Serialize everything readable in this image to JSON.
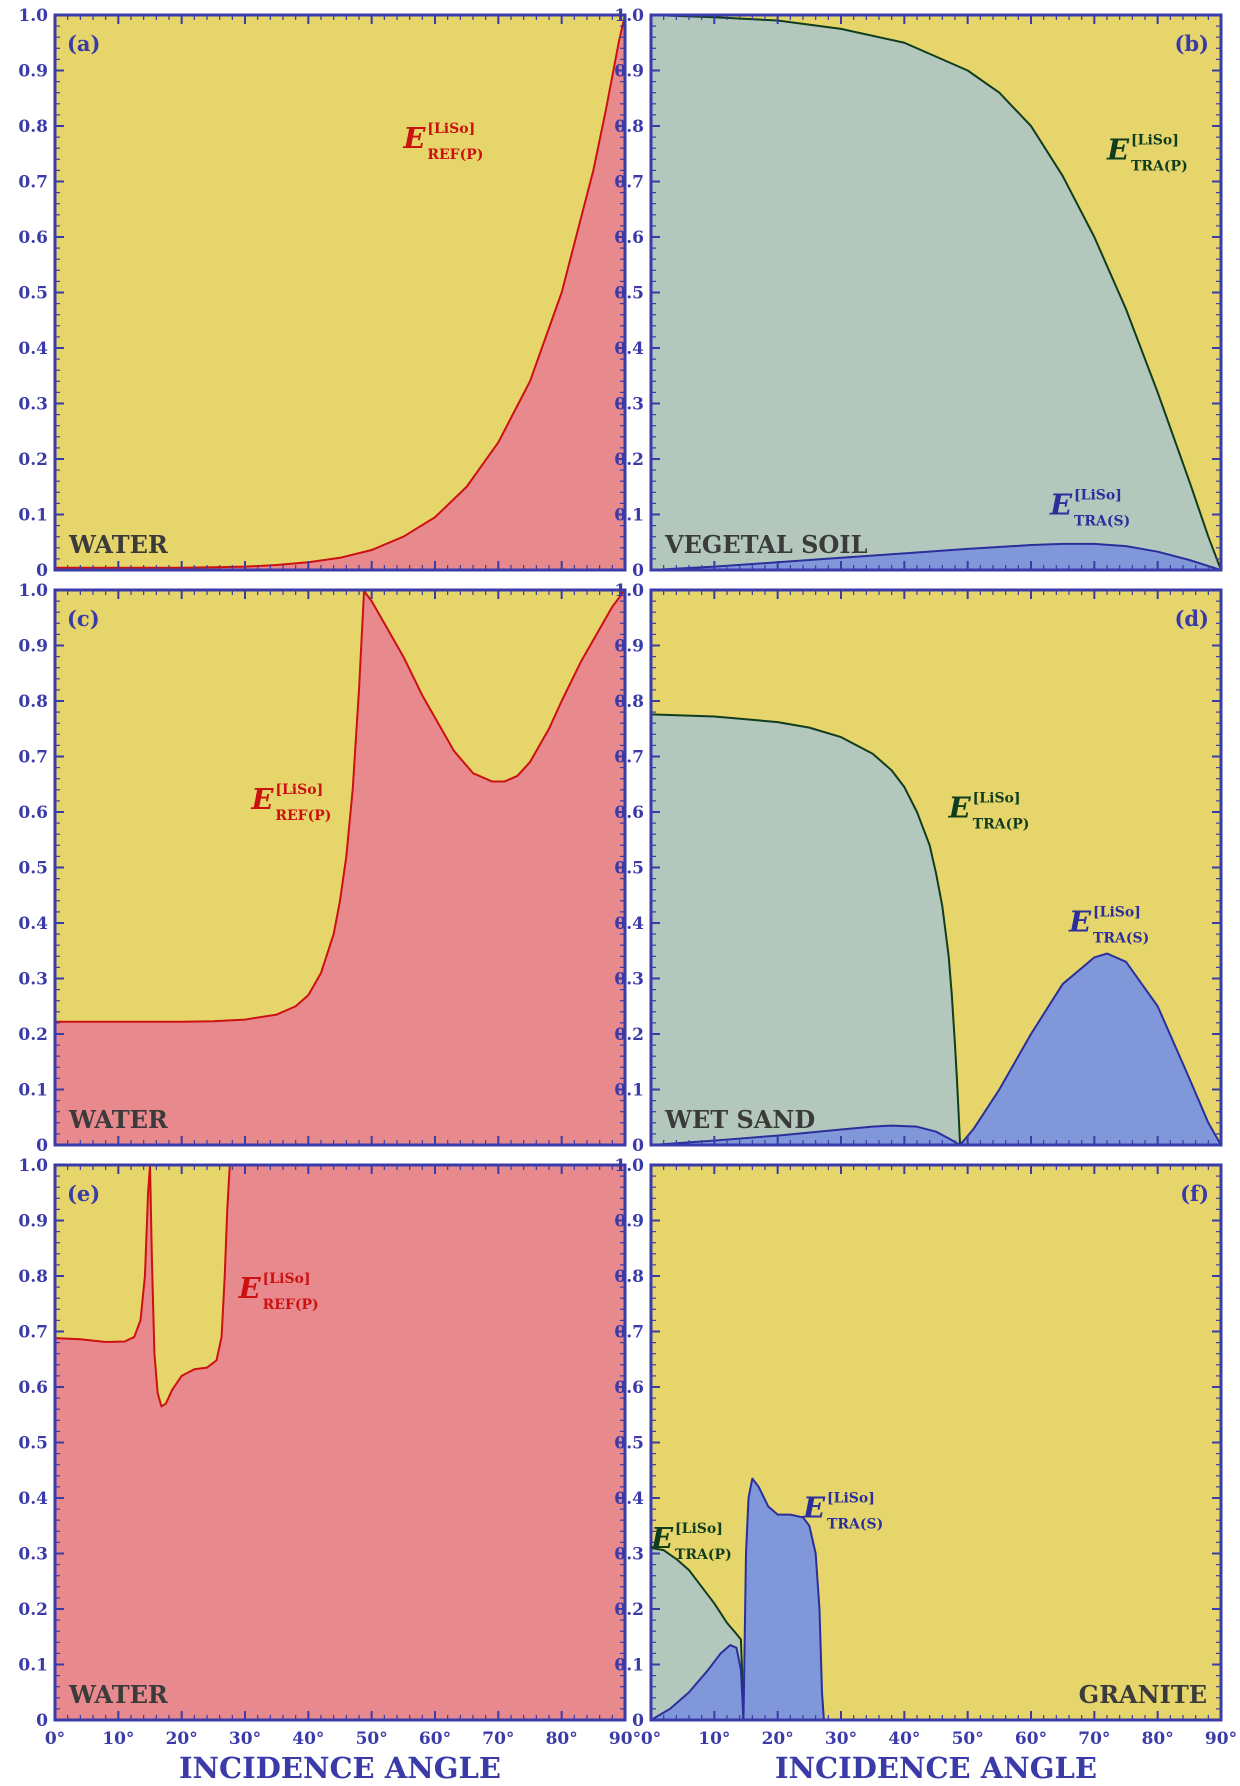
{
  "colors": {
    "background": "#e6d56a",
    "reflection_fill": "#e8898e",
    "reflection_line": "#cc1111",
    "tra_p_fill": "#b3c7bd",
    "tra_p_line": "#0f3d1d",
    "tra_s_fill": "#8098d9",
    "tra_s_line": "#2b2f9c",
    "axis": "#3a3aa8",
    "material_text": "#3b3b3b"
  },
  "x_axis": {
    "label": "INCIDENCE ANGLE",
    "ticks": [
      "0°",
      "10°",
      "20°",
      "30°",
      "40°",
      "50°",
      "60°",
      "70°",
      "80°",
      "90°"
    ],
    "tick_values": [
      0,
      10,
      20,
      30,
      40,
      50,
      60,
      70,
      80,
      90
    ]
  },
  "y_axis": {
    "ticks": [
      "0",
      "0.1",
      "0.2",
      "0.3",
      "0.4",
      "0.5",
      "0.6",
      "0.7",
      "0.8",
      "0.9",
      "1.0"
    ],
    "tick_values": [
      0,
      0.1,
      0.2,
      0.3,
      0.4,
      0.5,
      0.6,
      0.7,
      0.8,
      0.9,
      1.0
    ]
  },
  "chart_data": [
    {
      "type": "area",
      "panel": "(a)",
      "material": "WATER",
      "xlim": [
        0,
        90
      ],
      "ylim": [
        0,
        1
      ],
      "series": [
        {
          "name": "E REF(P) [LiSo]",
          "label_main": "E",
          "label_sup": "[LiSo]",
          "label_sub": "REF(P)",
          "kind": "ref",
          "x": [
            0,
            5,
            10,
            15,
            20,
            25,
            30,
            35,
            40,
            45,
            50,
            55,
            60,
            65,
            70,
            75,
            80,
            85,
            87,
            89,
            90
          ],
          "y": [
            0.004,
            0.004,
            0.004,
            0.004,
            0.004,
            0.005,
            0.006,
            0.009,
            0.014,
            0.022,
            0.036,
            0.06,
            0.095,
            0.15,
            0.23,
            0.34,
            0.5,
            0.72,
            0.83,
            0.95,
            1.0
          ]
        }
      ]
    },
    {
      "type": "area",
      "panel": "(b)",
      "material": "VEGETAL SOIL",
      "xlim": [
        0,
        90
      ],
      "ylim": [
        0,
        1
      ],
      "series": [
        {
          "name": "E TRA(P) [LiSo]",
          "label_main": "E",
          "label_sup": "[LiSo]",
          "label_sub": "TRA(P)",
          "kind": "trap",
          "x": [
            0,
            10,
            20,
            30,
            40,
            50,
            55,
            60,
            65,
            70,
            75,
            80,
            85,
            88,
            90
          ],
          "y": [
            1.0,
            0.996,
            0.99,
            0.975,
            0.95,
            0.9,
            0.86,
            0.8,
            0.71,
            0.6,
            0.47,
            0.32,
            0.16,
            0.06,
            0.0
          ]
        },
        {
          "name": "E TRA(S) [LiSo]",
          "label_main": "E",
          "label_sub": "TRA(S)",
          "label_sup": "[LiSo]",
          "kind": "tras",
          "x": [
            0,
            10,
            20,
            30,
            40,
            50,
            60,
            65,
            70,
            75,
            80,
            85,
            90
          ],
          "y": [
            0.0,
            0.006,
            0.014,
            0.022,
            0.03,
            0.038,
            0.045,
            0.047,
            0.047,
            0.043,
            0.033,
            0.018,
            0.0
          ]
        }
      ]
    },
    {
      "type": "area",
      "panel": "(c)",
      "material": "WATER",
      "xlim": [
        0,
        90
      ],
      "ylim": [
        0,
        1
      ],
      "series": [
        {
          "name": "E REF(P) [LiSo]",
          "label_main": "E",
          "label_sup": "[LiSo]",
          "label_sub": "REF(P)",
          "kind": "ref",
          "x": [
            0,
            10,
            20,
            25,
            30,
            35,
            38,
            40,
            42,
            44,
            45,
            46,
            47,
            48,
            48.8,
            49,
            50,
            52,
            55,
            58,
            60,
            63,
            66,
            69,
            71,
            73,
            75,
            78,
            80,
            83,
            86,
            88,
            90
          ],
          "y": [
            0.222,
            0.222,
            0.222,
            0.223,
            0.226,
            0.235,
            0.25,
            0.27,
            0.31,
            0.38,
            0.44,
            0.52,
            0.64,
            0.82,
            1.0,
            0.995,
            0.98,
            0.94,
            0.88,
            0.81,
            0.77,
            0.71,
            0.67,
            0.655,
            0.655,
            0.665,
            0.69,
            0.75,
            0.8,
            0.87,
            0.93,
            0.97,
            1.0
          ]
        }
      ]
    },
    {
      "type": "area",
      "panel": "(d)",
      "material": "WET SAND",
      "xlim": [
        0,
        90
      ],
      "ylim": [
        0,
        1
      ],
      "series": [
        {
          "name": "E TRA(P) [LiSo]",
          "label_main": "E",
          "label_sup": "[LiSo]",
          "label_sub": "TRA(P)",
          "kind": "trap",
          "x": [
            0,
            10,
            20,
            25,
            30,
            35,
            38,
            40,
            42,
            44,
            45,
            46,
            47,
            47.5,
            48,
            48.3,
            48.6,
            48.8
          ],
          "y": [
            0.776,
            0.772,
            0.762,
            0.752,
            0.735,
            0.705,
            0.675,
            0.645,
            0.6,
            0.54,
            0.49,
            0.43,
            0.34,
            0.27,
            0.18,
            0.12,
            0.05,
            0.0
          ]
        },
        {
          "name": "E TRA(S) [LiSo]",
          "label_main": "E",
          "label_sub": "TRA(S)",
          "label_sup": "[LiSo]",
          "kind": "tras",
          "x": [
            0,
            10,
            20,
            30,
            35,
            38,
            42,
            45,
            47,
            48.8,
            51,
            55,
            60,
            65,
            70,
            72,
            75,
            80,
            85,
            88,
            90
          ],
          "y": [
            0.0,
            0.008,
            0.017,
            0.028,
            0.033,
            0.035,
            0.033,
            0.024,
            0.012,
            0.0,
            0.03,
            0.1,
            0.2,
            0.29,
            0.338,
            0.345,
            0.33,
            0.25,
            0.12,
            0.04,
            0.0
          ]
        }
      ]
    },
    {
      "type": "area",
      "panel": "(e)",
      "material": "WATER",
      "xlim": [
        0,
        90
      ],
      "ylim": [
        0,
        1
      ],
      "series": [
        {
          "name": "E REF(P) [LiSo]",
          "label_main": "E",
          "label_sup": "[LiSo]",
          "label_sub": "REF(P)",
          "kind": "ref",
          "x": [
            0,
            4,
            8,
            11,
            12.5,
            13.5,
            14.2,
            14.7,
            15.0,
            15.3,
            15.7,
            16.2,
            16.8,
            17.5,
            18.5,
            20,
            22,
            24,
            25.5,
            26.3,
            26.8,
            27.2,
            27.6,
            28,
            90
          ],
          "y": [
            0.688,
            0.686,
            0.681,
            0.682,
            0.69,
            0.72,
            0.8,
            0.95,
            1.0,
            0.83,
            0.66,
            0.59,
            0.565,
            0.57,
            0.595,
            0.62,
            0.632,
            0.635,
            0.648,
            0.69,
            0.8,
            0.92,
            1.0,
            1.0,
            1.0
          ]
        }
      ]
    },
    {
      "type": "area",
      "panel": "(f)",
      "material": "GRANITE",
      "xlim": [
        0,
        90
      ],
      "ylim": [
        0,
        1
      ],
      "series": [
        {
          "name": "E TRA(P) [LiSo]",
          "label_main": "E",
          "label_sup": "[LiSo]",
          "label_sub": "TRA(P)",
          "kind": "trap",
          "x": [
            0,
            2,
            4,
            6,
            8,
            10,
            12,
            13.5,
            14.2,
            14.4,
            14.6
          ],
          "y": [
            0.31,
            0.306,
            0.29,
            0.27,
            0.24,
            0.21,
            0.175,
            0.155,
            0.145,
            0.08,
            0.0
          ]
        },
        {
          "name": "E TRA(S) [LiSo]",
          "label_main": "E",
          "label_sub": "TRA(S)",
          "label_sup": "[LiSo]",
          "kind": "tras",
          "x": [
            0,
            3,
            6,
            9,
            11,
            12.5,
            13.5,
            14.2,
            14.6,
            15.0,
            15.4,
            16,
            17,
            18.5,
            20,
            22,
            24,
            25,
            26,
            26.6,
            27,
            27.3
          ],
          "y": [
            0.0,
            0.02,
            0.05,
            0.09,
            0.12,
            0.135,
            0.13,
            0.09,
            0.0,
            0.3,
            0.4,
            0.435,
            0.42,
            0.385,
            0.37,
            0.37,
            0.365,
            0.35,
            0.3,
            0.2,
            0.05,
            0.0
          ]
        }
      ]
    }
  ]
}
